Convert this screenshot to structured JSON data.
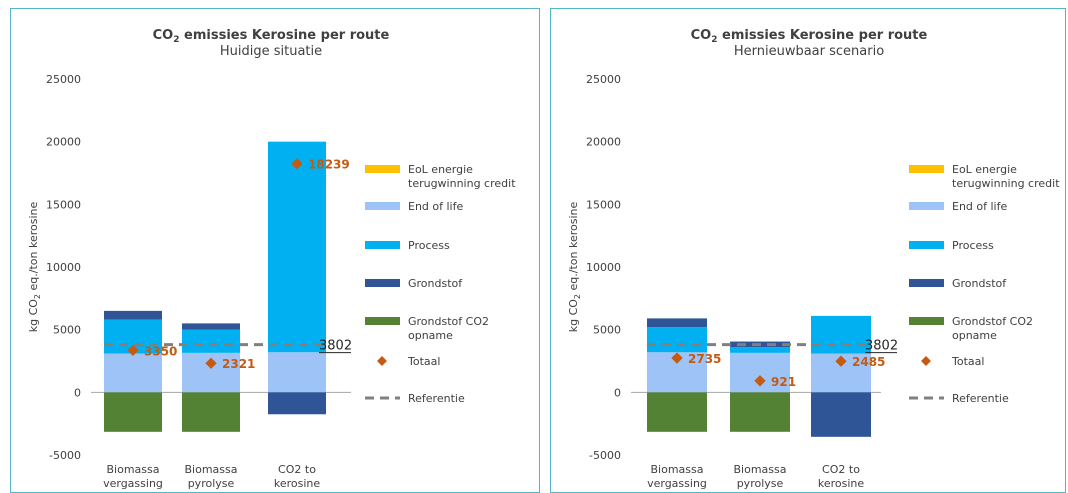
{
  "colors": {
    "eol_credit": "#ffc000",
    "end_of_life": "#9dc3f7",
    "process": "#00b0f0",
    "grondstof": "#2f5597",
    "grondstof_co2": "#548235",
    "totaal": "#c55a11",
    "referentie": "#808080",
    "axis_text": "#404040"
  },
  "chart_data": [
    {
      "type": "bar",
      "title": "CO₂ emissies Kerosine per route",
      "subtitle": "Huidige situatie",
      "ylabel": "kg CO₂ eq./ton kerosine",
      "ylim": [
        -5000,
        25000
      ],
      "yticks": [
        -5000,
        0,
        5000,
        10000,
        15000,
        20000,
        25000
      ],
      "categories": [
        [
          "Biomassa",
          "vergassing"
        ],
        [
          "Biomassa",
          "pyrolyse"
        ],
        [
          "CO2 to",
          "kerosine"
        ]
      ],
      "series": [
        {
          "name": "EoL energie terugwinning credit",
          "values": [
            0,
            0,
            0
          ]
        },
        {
          "name": "End of life",
          "values": [
            3100,
            3150,
            3200
          ]
        },
        {
          "name": "Process",
          "values": [
            2700,
            1850,
            16800
          ]
        },
        {
          "name": "Grondstof",
          "values": [
            700,
            500,
            -1750
          ]
        },
        {
          "name": "Grondstof CO2 opname",
          "values": [
            -3150,
            -3150,
            0
          ]
        }
      ],
      "totaal": {
        "name": "Totaal",
        "values": [
          3350,
          2321,
          18239
        ],
        "labels": [
          "3350",
          "2321",
          "18239"
        ]
      },
      "referentie": {
        "name": "Referentie",
        "value": 3802,
        "label": "3802"
      },
      "legend_position": "right",
      "grid": false
    },
    {
      "type": "bar",
      "title": "CO₂ emissies Kerosine per route",
      "subtitle": "Hernieuwbaar scenario",
      "ylabel": "kg CO₂ eq./ton kerosine",
      "ylim": [
        -5000,
        25000
      ],
      "yticks": [
        -5000,
        0,
        5000,
        10000,
        15000,
        20000,
        25000
      ],
      "categories": [
        [
          "Biomassa",
          "vergassing"
        ],
        [
          "Biomassa",
          "pyrolyse"
        ],
        [
          "CO2 to",
          "kerosine"
        ]
      ],
      "series": [
        {
          "name": "EoL energie terugwinning credit",
          "values": [
            0,
            0,
            0
          ]
        },
        {
          "name": "End of life",
          "values": [
            3200,
            3150,
            3100
          ]
        },
        {
          "name": "Process",
          "values": [
            2000,
            450,
            3000
          ]
        },
        {
          "name": "Grondstof",
          "values": [
            700,
            450,
            -3550
          ]
        },
        {
          "name": "Grondstof CO2 opname",
          "values": [
            -3150,
            -3150,
            0
          ]
        }
      ],
      "totaal": {
        "name": "Totaal",
        "values": [
          2735,
          921,
          2485
        ],
        "labels": [
          "2735",
          "921",
          "2485"
        ]
      },
      "referentie": {
        "name": "Referentie",
        "value": 3802,
        "label": "3802"
      },
      "legend_position": "right",
      "grid": false
    }
  ]
}
